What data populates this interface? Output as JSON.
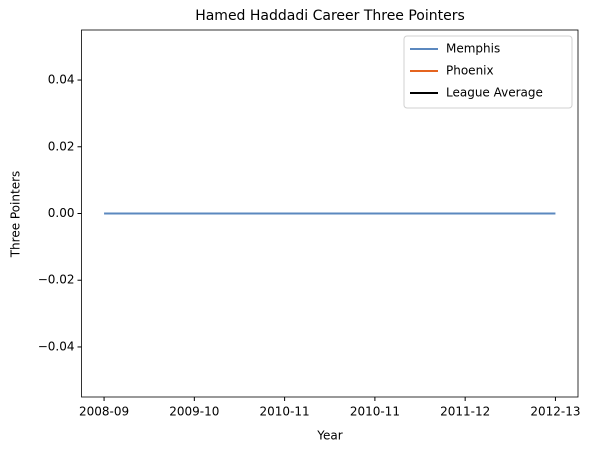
{
  "chart_data": {
    "type": "line",
    "title": "Hamed Haddadi Career Three Pointers",
    "xlabel": "Year",
    "ylabel": "Three Pointers",
    "categories": [
      "2008-09",
      "2009-10",
      "2010-11",
      "2010-11",
      "2011-12",
      "2012-13"
    ],
    "series": [
      {
        "name": "Memphis",
        "color": "#5b88bf",
        "values": [
          0,
          0,
          0,
          0,
          0,
          0
        ]
      },
      {
        "name": "Phoenix",
        "color": "#e5641f",
        "values": [
          null,
          null,
          null,
          null,
          null,
          null
        ]
      },
      {
        "name": "League Average",
        "color": "#000000",
        "values": [
          null,
          null,
          null,
          null,
          null,
          null
        ]
      }
    ],
    "ylim": [
      -0.055,
      0.055
    ],
    "yticks": [
      {
        "value": -0.04,
        "label": "−0.04"
      },
      {
        "value": -0.02,
        "label": "−0.02"
      },
      {
        "value": 0,
        "label": "0.00"
      },
      0.02,
      0.04
    ],
    "grid": false,
    "legend": "upper right"
  }
}
